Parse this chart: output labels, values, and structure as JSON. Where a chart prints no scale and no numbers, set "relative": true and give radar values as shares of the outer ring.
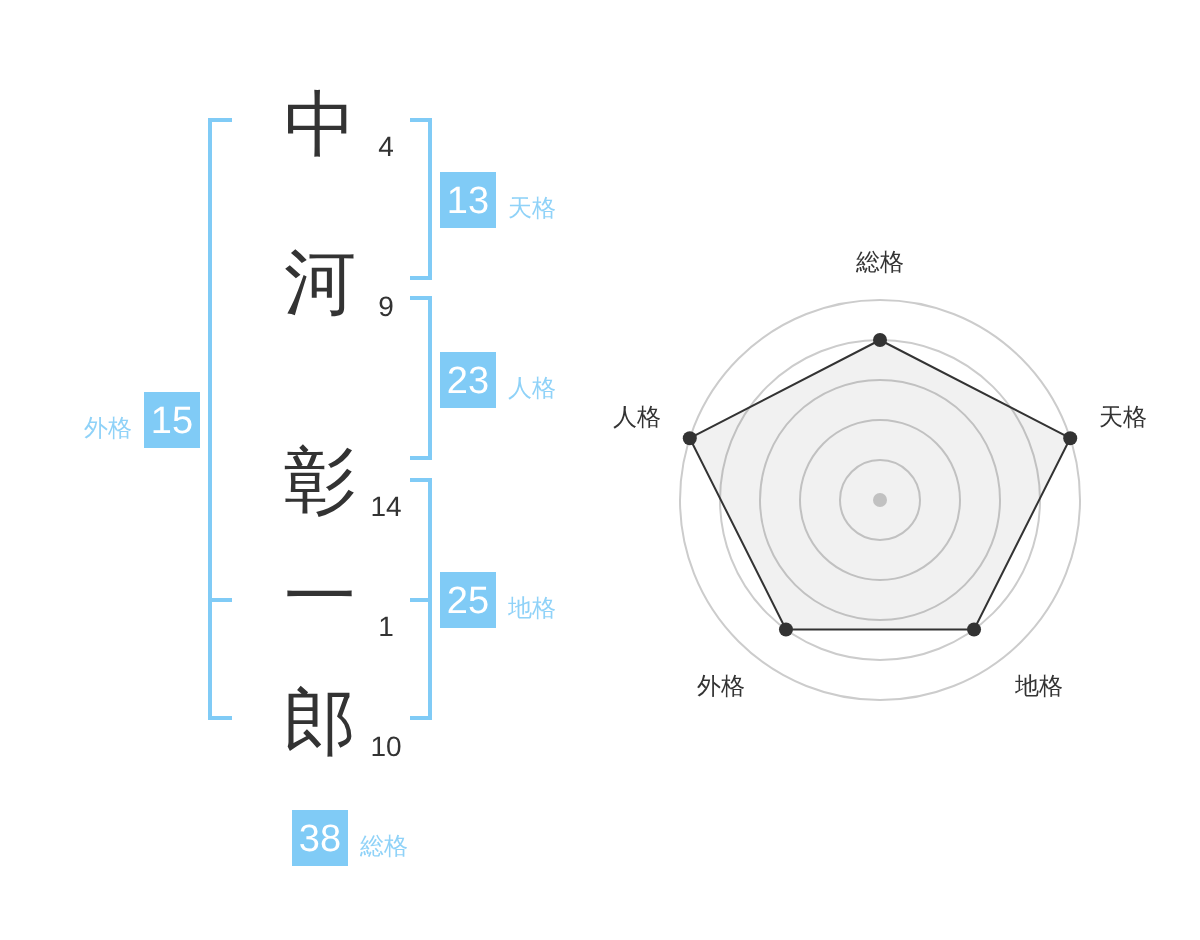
{
  "chart_data": [
    {
      "type": "other",
      "categories": [
        "中",
        "河",
        "彰",
        "一",
        "郎"
      ],
      "values": [
        4,
        9,
        14,
        1,
        10
      ],
      "data_labels": true,
      "annotations": [
        "13",
        "天格",
        "23",
        "人格",
        "25",
        "地格",
        "15",
        "外格",
        "38",
        "総格"
      ]
    },
    {
      "type": "radar",
      "categories": [
        "総格",
        "天格",
        "地格",
        "外格",
        "人格"
      ],
      "relative": true,
      "series": [
        {
          "color": "#333333",
          "values": [
            0.8,
            1,
            0.8,
            0.8,
            1
          ]
        }
      ]
    }
  ]
}
